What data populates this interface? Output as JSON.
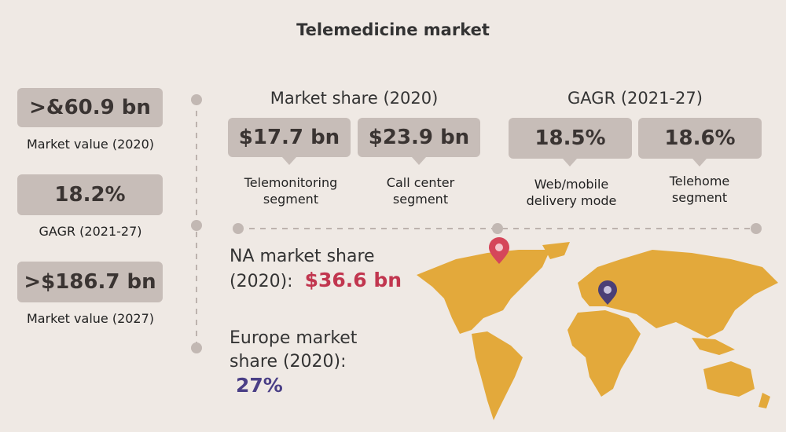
{
  "header": {
    "title": "Telemedicine market"
  },
  "summary": [
    {
      "value": ">&60.9 bn",
      "label": "Market value (2020)"
    },
    {
      "value": "18.2%",
      "label": "GAGR (2021-27)"
    },
    {
      "value": ">$186.7 bn",
      "label": "Market value (2027)"
    }
  ],
  "groups": [
    {
      "title": "Market share (2020)",
      "items": [
        {
          "value": "$17.7 bn",
          "label": "Telemonitoring segment"
        },
        {
          "value": "$23.9 bn",
          "label": "Call center segment"
        }
      ]
    },
    {
      "title": "GAGR (2021-27)",
      "items": [
        {
          "value": "18.5%",
          "label": "Web/mobile delivery mode"
        },
        {
          "value": "18.6%",
          "label": "Telehome segment"
        }
      ]
    }
  ],
  "regions": [
    {
      "label": "NA market share (2020):",
      "value": "$36.6 bn"
    },
    {
      "label": "Europe market share (2020):",
      "value": "27%"
    }
  ]
}
